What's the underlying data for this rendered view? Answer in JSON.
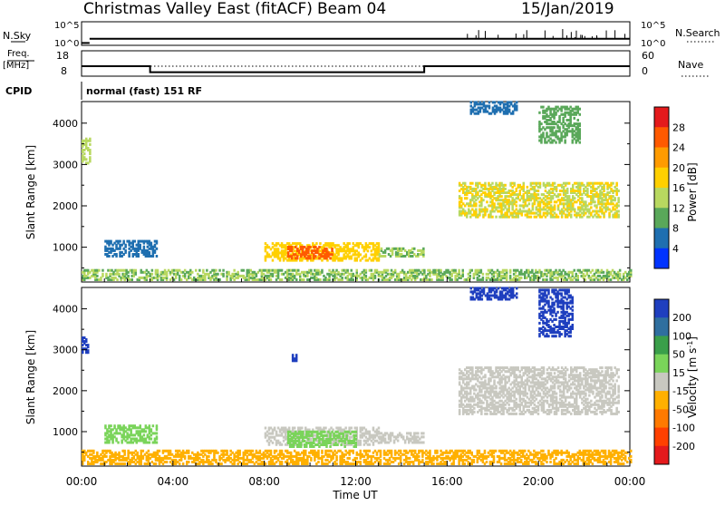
{
  "header": {
    "title": "Christmas Valley East (fitACF)",
    "beam": "Beam 04",
    "date": "15/Jan/2019"
  },
  "params": {
    "nsky_label": "N.Sky",
    "nsearch_label": "N.Search",
    "log_max": "10^5",
    "log_min": "10^0",
    "freq_label_1": "Freq.",
    "freq_label_2": "[MHz]",
    "freq_ticks": [
      "18",
      "8"
    ],
    "nave_ticks": [
      "60",
      "0"
    ],
    "nave_label": "Nave",
    "cpid_label": "CPID",
    "cpid_text": "normal (fast) 151 RF"
  },
  "chart_data": [
    {
      "type": "heatmap",
      "name": "power",
      "ylabel": "Slant Range [km]",
      "xlabel": "",
      "ylim": [
        180,
        4500
      ],
      "xlim": [
        0,
        24
      ],
      "y_ticks": [
        "4000",
        "3000",
        "2000",
        "1000"
      ],
      "colorbar": {
        "label": "Power [dB]",
        "ticks": [
          "28",
          "24",
          "20",
          "16",
          "12",
          "8",
          "4"
        ],
        "colors": [
          "#e41a1c",
          "#ff5a00",
          "#ff9b00",
          "#ffd000",
          "#b8d860",
          "#5aa85a",
          "#1f6fb0",
          "#0033ff"
        ]
      },
      "regions": [
        {
          "t0": 0.0,
          "t1": 0.35,
          "r0": 3000,
          "r1": 3600,
          "level": 16
        },
        {
          "t0": 1.0,
          "t1": 3.3,
          "r0": 750,
          "r1": 1150,
          "level": 8
        },
        {
          "t0": 8.0,
          "t1": 13.0,
          "r0": 650,
          "r1": 1100,
          "level": 20
        },
        {
          "t0": 9.0,
          "t1": 11.0,
          "r0": 700,
          "r1": 1000,
          "level": 28
        },
        {
          "t0": 13.0,
          "t1": 15.0,
          "r0": 750,
          "r1": 950,
          "level": 14
        },
        {
          "t0": 0.0,
          "t1": 24.0,
          "r0": 180,
          "r1": 450,
          "level": 14
        },
        {
          "t0": 16.5,
          "t1": 23.5,
          "r0": 1700,
          "r1": 2550,
          "level": 18
        },
        {
          "t0": 20.0,
          "t1": 21.8,
          "r0": 3500,
          "r1": 4400,
          "level": 12
        },
        {
          "t0": 17.0,
          "t1": 19.0,
          "r0": 4200,
          "r1": 4500,
          "level": 8
        }
      ]
    },
    {
      "type": "heatmap",
      "name": "velocity",
      "ylabel": "Slant Range [km]",
      "xlabel": "Time UT",
      "ylim": [
        180,
        4500
      ],
      "xlim": [
        0,
        24
      ],
      "x_ticks": [
        "00:00",
        "04:00",
        "08:00",
        "12:00",
        "16:00",
        "20:00",
        "00:00"
      ],
      "y_ticks": [
        "4000",
        "3000",
        "2000",
        "1000"
      ],
      "colorbar": {
        "label": "Velocity [m s^-1]",
        "ticks": [
          "200",
          "100",
          "50",
          "15",
          "-15",
          "-50",
          "-100",
          "-200"
        ],
        "colors": [
          "#1f3fbf",
          "#2f6f9f",
          "#3a9f4a",
          "#7ad45a",
          "#c8c8c0",
          "#ffb000",
          "#ff7a00",
          "#ff4000",
          "#e41a1c"
        ]
      },
      "regions": [
        {
          "t0": 0.0,
          "t1": 0.3,
          "r0": 2900,
          "r1": 3300,
          "level": 200
        },
        {
          "t0": 9.2,
          "t1": 9.4,
          "r0": 2700,
          "r1": 2850,
          "level": 200
        },
        {
          "t0": 1.0,
          "t1": 3.3,
          "r0": 700,
          "r1": 1150,
          "level": 50
        },
        {
          "t0": 8.0,
          "t1": 13.0,
          "r0": 650,
          "r1": 1100,
          "level": 0
        },
        {
          "t0": 9.0,
          "t1": 12.0,
          "r0": 600,
          "r1": 1000,
          "level": 50
        },
        {
          "t0": 13.0,
          "t1": 15.0,
          "r0": 700,
          "r1": 950,
          "level": 0
        },
        {
          "t0": 0.0,
          "t1": 24.0,
          "r0": 180,
          "r1": 500,
          "level": -50
        },
        {
          "t0": 16.5,
          "t1": 23.5,
          "r0": 1400,
          "r1": 2550,
          "level": 0
        },
        {
          "t0": 20.0,
          "t1": 21.5,
          "r0": 3300,
          "r1": 4450,
          "level": 200
        },
        {
          "t0": 17.0,
          "t1": 19.0,
          "r0": 4200,
          "r1": 4500,
          "level": 200
        }
      ]
    }
  ],
  "time_series": {
    "nsky": [
      {
        "t0": 0.0,
        "t1": 0.35,
        "v": 0.1
      },
      {
        "t0": 0.35,
        "t1": 24.0,
        "v": 0.28
      }
    ],
    "freq": [
      {
        "t0": 0.0,
        "t1": 3.0,
        "v": 13
      },
      {
        "t0": 3.0,
        "t1": 15.0,
        "v": 10
      },
      {
        "t0": 15.0,
        "t1": 24.0,
        "v": 13
      }
    ],
    "nave": 30
  }
}
